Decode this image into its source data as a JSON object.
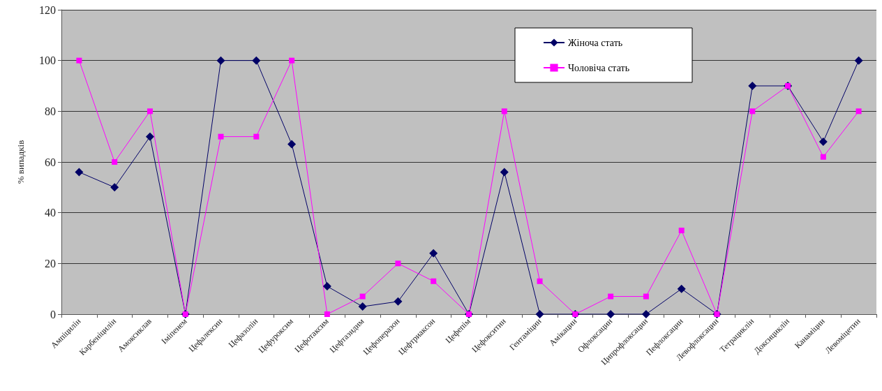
{
  "chart_data": {
    "type": "line",
    "ylabel": "% випадків",
    "categories": [
      "Ампіцилін",
      "Карбеніцилін",
      "Амоксиклав",
      "Іміпенем",
      "Цефалексин",
      "Цефазолін",
      "Цефуроксим",
      "Цефотаксим",
      "Цефтазидим",
      "Цефоперазон",
      "Цефтриаксон",
      "Цефепім",
      "Цефокситин",
      "Гентаміцин",
      "Амікацин",
      "Офлоксацин",
      "Ципрофлоксацин",
      "Пефлоксацин",
      "Левофлоксацин",
      "Тетрациклін",
      "Доксициклін",
      "Канаміцин",
      "Левоміцетин"
    ],
    "series": [
      {
        "name": "Жіноча стать",
        "color": "#000066",
        "marker": "diamond",
        "values": [
          56,
          50,
          70,
          0,
          100,
          100,
          67,
          11,
          3,
          5,
          24,
          0,
          56,
          0,
          0,
          0,
          0,
          10,
          0,
          90,
          90,
          68,
          100
        ]
      },
      {
        "name": "Чоловіча стать",
        "color": "#ff00ff",
        "marker": "square",
        "values": [
          100,
          60,
          80,
          0,
          70,
          70,
          100,
          0,
          7,
          20,
          13,
          0,
          80,
          13,
          0,
          7,
          7,
          33,
          0,
          80,
          90,
          62,
          80
        ]
      }
    ],
    "ylim": [
      0,
      120
    ],
    "yticks": [
      0,
      20,
      40,
      60,
      80,
      100,
      120
    ],
    "grid": "y",
    "legend": "top"
  }
}
